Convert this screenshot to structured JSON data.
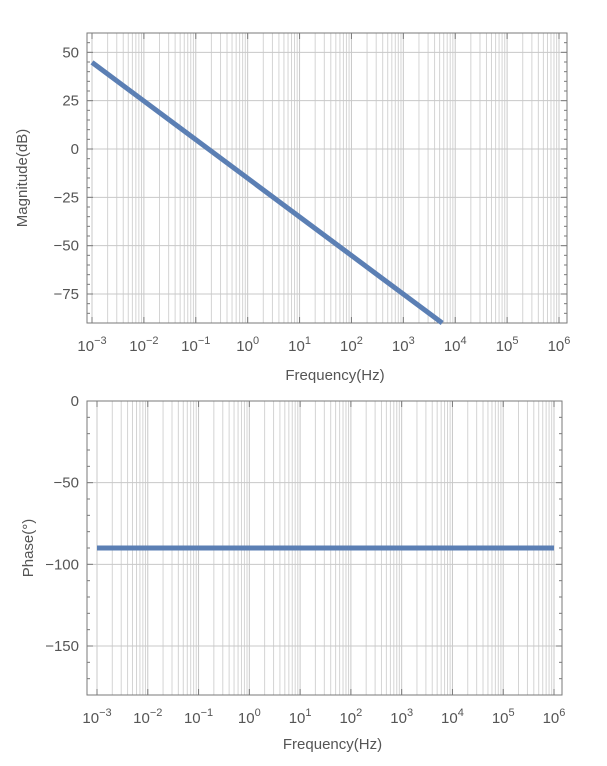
{
  "chart_data": [
    {
      "type": "line",
      "x_scale": "log",
      "xlabel": "Frequency(Hz)",
      "ylabel": "Magnitude(dB)",
      "xlim": [
        0.001,
        1000000
      ],
      "ylim": [
        -90,
        60
      ],
      "x_tick_exponents": [
        "-3",
        "-2",
        "-1",
        "0",
        "1",
        "2",
        "3",
        "4",
        "5",
        "6"
      ],
      "y_ticks": [
        50,
        25,
        0,
        -25,
        -50,
        -75
      ],
      "y_tick_labels": [
        "50",
        "25",
        "0",
        "−25",
        "−50",
        "−75"
      ],
      "grid": true,
      "series": [
        {
          "x": [
            0.001,
            5600
          ],
          "y": [
            44.8,
            -90
          ],
          "color": "#5b7fb4"
        }
      ]
    },
    {
      "type": "line",
      "x_scale": "log",
      "xlabel": "Frequency(Hz)",
      "ylabel": "Phase(°)",
      "xlim": [
        0.001,
        1000000
      ],
      "ylim": [
        -180,
        0
      ],
      "x_tick_exponents": [
        "-3",
        "-2",
        "-1",
        "0",
        "1",
        "2",
        "3",
        "4",
        "5",
        "6"
      ],
      "y_ticks": [
        0,
        -50,
        -100,
        -150
      ],
      "y_tick_labels": [
        "0",
        "−50",
        "−100",
        "−150"
      ],
      "grid": true,
      "series": [
        {
          "x": [
            0.001,
            1000000
          ],
          "y": [
            -90,
            -90
          ],
          "color": "#5b7fb4"
        }
      ]
    }
  ]
}
